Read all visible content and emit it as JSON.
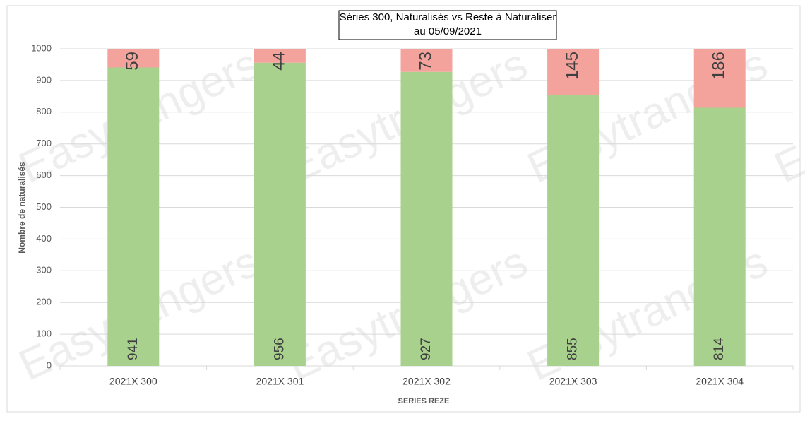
{
  "chart_data": {
    "type": "stacked-bar",
    "title": "Séries 300, Naturalisés vs Reste à Naturaliser",
    "subtitle": "au 05/09/2021",
    "watermark": "Easytrangers",
    "x_label": "SERIES REZE",
    "y_label": "Nombre de naturalisés",
    "categories": [
      "2021X 300",
      "2021X 301",
      "2021X 302",
      "2021X 303",
      "2021X 304"
    ],
    "series": [
      {
        "color": "#a9d18e",
        "values": [
          941,
          956,
          927,
          855,
          814
        ]
      },
      {
        "color": "#f4a39c",
        "values": [
          59,
          44,
          73,
          145,
          186
        ]
      }
    ],
    "ylim": [
      0,
      1000
    ],
    "yticks": [
      0,
      100,
      200,
      300,
      400,
      500,
      600,
      700,
      800,
      900,
      1000
    ],
    "grid": true
  }
}
